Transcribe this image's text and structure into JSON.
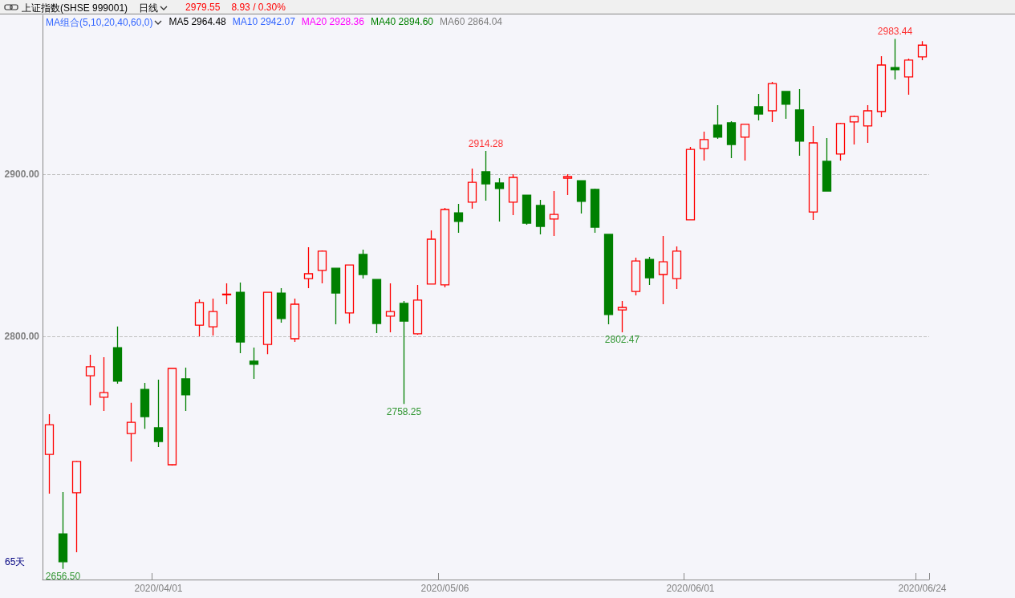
{
  "chart_data": {
    "type": "candlestick",
    "title": "上证指数(SHSE 999001)",
    "categories": [
      null,
      null,
      null,
      null,
      null,
      null,
      null,
      null,
      "2020/04/01",
      null,
      null,
      null,
      null,
      null,
      null,
      null,
      null,
      null,
      null,
      null,
      null,
      null,
      null,
      null,
      null,
      null,
      null,
      null,
      null,
      "2020/05/06",
      null,
      null,
      null,
      null,
      null,
      null,
      null,
      null,
      null,
      null,
      null,
      null,
      null,
      null,
      null,
      null,
      null,
      "2020/06/01",
      null,
      null,
      null,
      null,
      null,
      null,
      null,
      null,
      null,
      null,
      null,
      null,
      null,
      null,
      null,
      null,
      "2020/06/24"
    ],
    "ohlc": [
      [
        2727.2,
        2752,
        2703,
        2745.5
      ],
      [
        2678.2,
        2704,
        2656.5,
        2661
      ],
      [
        2703.5,
        2723.3,
        2666.8,
        2722.8
      ],
      [
        2775.7,
        2788.6,
        2757.4,
        2781.2
      ],
      [
        2762.4,
        2787.1,
        2754,
        2765.3
      ],
      [
        2793,
        2806,
        2770.8,
        2772.3
      ],
      [
        2740,
        2759,
        2722.8,
        2747
      ],
      [
        2767.3,
        2771.3,
        2743,
        2750.5
      ],
      [
        2743.6,
        2773.3,
        2731.7,
        2735.1
      ],
      [
        2720.8,
        2780.5,
        2720.3,
        2780.2
      ],
      [
        2773.8,
        2780.7,
        2754,
        2763.9
      ],
      [
        2806.9,
        2822.8,
        2800,
        2820.8
      ],
      [
        2805.9,
        2823.3,
        2800.5,
        2815.3
      ],
      [
        2825.5,
        2832.7,
        2819.8,
        2826
      ],
      [
        2827.2,
        2833.2,
        2789.6,
        2796.5
      ],
      [
        2784.7,
        2793,
        2773.8,
        2782.7
      ],
      [
        2795,
        2827.5,
        2789,
        2827.2
      ],
      [
        2826.7,
        2829.7,
        2808.4,
        2810.9
      ],
      [
        2798.5,
        2823.3,
        2796.5,
        2819.8
      ],
      [
        2835.6,
        2855,
        2829.7,
        2838.6
      ],
      [
        2840.6,
        2853,
        2832.7,
        2852.5
      ],
      [
        2842,
        2842,
        2807.4,
        2826.7
      ],
      [
        2814.4,
        2844,
        2807.9,
        2844
      ],
      [
        2850.5,
        2853.5,
        2835.6,
        2838.1
      ],
      [
        2835.1,
        2835.1,
        2802,
        2807.9
      ],
      [
        2812.4,
        2832.7,
        2802.5,
        2815.3
      ],
      [
        2820.3,
        2821.8,
        2758.25,
        2809.4
      ],
      [
        2801.5,
        2831.7,
        2801,
        2822.3
      ],
      [
        2832.2,
        2865.3,
        2832.2,
        2859.9
      ],
      [
        2831.7,
        2879.2,
        2830.2,
        2878.2
      ],
      [
        2876.2,
        2881.7,
        2863.9,
        2870.8
      ],
      [
        2882.7,
        2903.5,
        2878.7,
        2895
      ],
      [
        2901.5,
        2914.28,
        2883.7,
        2894
      ],
      [
        2894.6,
        2897.5,
        2870.8,
        2891.1
      ],
      [
        2882.7,
        2900,
        2874.8,
        2898
      ],
      [
        2887.1,
        2887.1,
        2868.8,
        2869.8
      ],
      [
        2880.7,
        2884.2,
        2862.9,
        2867.8
      ],
      [
        2872.3,
        2889.6,
        2861.9,
        2875.2
      ],
      [
        2897.5,
        2900,
        2887.1,
        2898.5
      ],
      [
        2896,
        2896,
        2875.7,
        2883.2
      ],
      [
        2890.6,
        2891.1,
        2863.9,
        2867.3
      ],
      [
        2862.9,
        2862.9,
        2807.4,
        2813.4
      ],
      [
        2816.3,
        2821.8,
        2802.47,
        2817.8
      ],
      [
        2827.7,
        2848.5,
        2825.2,
        2846.5
      ],
      [
        2847.5,
        2849,
        2831.7,
        2836.1
      ],
      [
        2838.1,
        2861.9,
        2819.8,
        2846
      ],
      [
        2835.6,
        2855.4,
        2829.2,
        2852.5
      ],
      [
        2871.8,
        2916.8,
        2871.8,
        2915.3
      ],
      [
        2915.8,
        2926.2,
        2908.4,
        2921.3
      ],
      [
        2930.2,
        2942.6,
        2921.8,
        2922.8
      ],
      [
        2931.7,
        2932.7,
        2909.9,
        2918.3
      ],
      [
        2922.8,
        2930.7,
        2908.4,
        2930.7
      ],
      [
        2941.6,
        2949.5,
        2933.2,
        2937.1
      ],
      [
        2939.1,
        2956.9,
        2932.2,
        2955.9
      ],
      [
        2951,
        2951,
        2934.2,
        2943.1
      ],
      [
        2939.6,
        2952.5,
        2911.4,
        2920.3
      ],
      [
        2876.7,
        2929.7,
        2871.8,
        2919.3
      ],
      [
        2907.9,
        2922.3,
        2889.6,
        2889.6
      ],
      [
        2912.4,
        2931.7,
        2908.4,
        2931.2
      ],
      [
        2932.2,
        2936.1,
        2918.3,
        2935.6
      ],
      [
        2929.7,
        2942.6,
        2919.3,
        2939.1
      ],
      [
        2938.6,
        2972.8,
        2935.1,
        2967.3
      ],
      [
        2965.8,
        2983.44,
        2958.4,
        2964.4
      ],
      [
        2959.9,
        2971.3,
        2949,
        2970.3
      ],
      [
        2972.3,
        2982,
        2970.3,
        2979.55
      ]
    ],
    "ylim": [
      2650,
      2998
    ],
    "yticks": [
      {
        "value": 2800,
        "label": "2800.00"
      },
      {
        "value": 2900,
        "label": "2900.00"
      }
    ],
    "grid": "y",
    "annotations": [
      "日线",
      "2979.55",
      "8.93 / 0.30%",
      "MA组合(5,10,20,40,60,0)",
      "MA5 2964.48",
      "MA10 2942.07",
      "MA20 2928.36",
      "MA40 2894.60",
      "MA60 2864.04",
      "65天",
      {
        "text": "2983.44",
        "y": 2983.44
      },
      {
        "text": "2914.28",
        "y": 2914.28
      },
      {
        "text": "2802.47",
        "y": 2802.47
      },
      {
        "text": "2758.25",
        "y": 2758.25
      },
      {
        "text": "2656.50",
        "y": 2656.5
      }
    ]
  }
}
